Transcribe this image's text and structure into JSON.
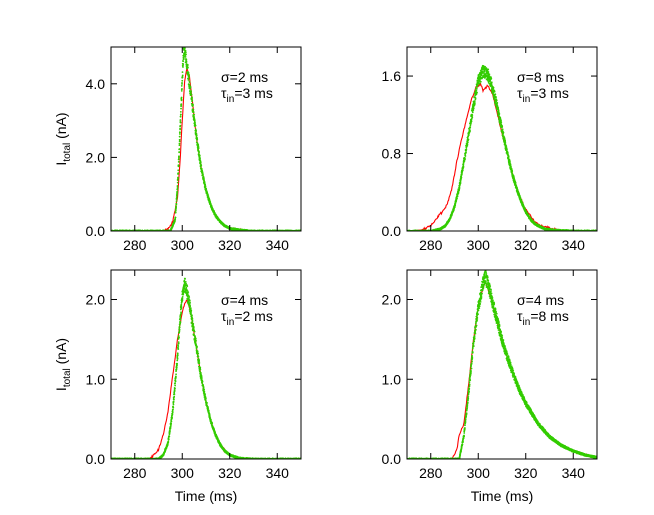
{
  "chart_data": [
    {
      "type": "line",
      "annotation": [
        "σ=2 ms",
        "τ",
        "in",
        "=3 ms"
      ],
      "xlim": [
        270,
        350
      ],
      "ylim": [
        0,
        5.0
      ],
      "xticks": [
        280,
        300,
        320,
        340
      ],
      "yticks": [
        0.0,
        2.0,
        4.0
      ],
      "ytick_labels": [
        "0.0",
        "2.0",
        "4.0"
      ],
      "xticks_labeled": true,
      "ylabel": [
        "I",
        "total",
        " (nA)"
      ],
      "xlabel": "",
      "series": [
        {
          "color": "#ff0000",
          "style": "line",
          "x": [
            270,
            292,
            294,
            296,
            298,
            299,
            300,
            301,
            302,
            303,
            304,
            305,
            306,
            308,
            310,
            312,
            314,
            316,
            318,
            320,
            325,
            330,
            350
          ],
          "y": [
            0,
            0,
            0.05,
            0.25,
            0.9,
            1.8,
            3.0,
            4.05,
            4.45,
            4.2,
            3.7,
            3.1,
            2.55,
            1.7,
            1.1,
            0.7,
            0.42,
            0.25,
            0.14,
            0.07,
            0.02,
            0,
            0
          ]
        },
        {
          "color": "#33cc00",
          "style": "scatter",
          "x": [
            270,
            295,
            297,
            298,
            299,
            300,
            300.5,
            301,
            302,
            303,
            304,
            305,
            306,
            308,
            310,
            312,
            314,
            316,
            318,
            320,
            325,
            330,
            350
          ],
          "y": [
            0,
            0,
            0.3,
            1.2,
            2.6,
            4.1,
            4.8,
            4.9,
            4.5,
            4.0,
            3.55,
            3.05,
            2.55,
            1.7,
            1.1,
            0.7,
            0.42,
            0.25,
            0.14,
            0.07,
            0.02,
            0,
            0
          ]
        }
      ]
    },
    {
      "type": "line",
      "annotation": [
        "σ=8 ms",
        "τ",
        "in",
        "=3 ms"
      ],
      "xlim": [
        270,
        350
      ],
      "ylim": [
        0,
        1.9
      ],
      "xticks": [
        280,
        300,
        320,
        340
      ],
      "yticks": [
        0.0,
        0.8,
        1.6
      ],
      "ytick_labels": [
        "0.0",
        "0.8",
        "1.6"
      ],
      "xticks_labeled": true,
      "ylabel": "",
      "xlabel": "",
      "series": [
        {
          "color": "#ff0000",
          "style": "line",
          "x": [
            270,
            276,
            280,
            283,
            285,
            287,
            289,
            291,
            293,
            295,
            297,
            299,
            301,
            302,
            304,
            306,
            308,
            310,
            312,
            314,
            316,
            318,
            320,
            323,
            326,
            330,
            335,
            340,
            350
          ],
          "y": [
            0,
            0.01,
            0.05,
            0.15,
            0.2,
            0.28,
            0.45,
            0.72,
            0.95,
            1.15,
            1.35,
            1.48,
            1.52,
            1.45,
            1.5,
            1.42,
            1.22,
            1.0,
            0.82,
            0.62,
            0.46,
            0.33,
            0.22,
            0.12,
            0.06,
            0.03,
            0.01,
            0,
            0
          ]
        },
        {
          "color": "#33cc00",
          "style": "scatter",
          "x": [
            270,
            280,
            284,
            286,
            288,
            290,
            292,
            294,
            296,
            298,
            300,
            302,
            304,
            306,
            308,
            310,
            312,
            314,
            316,
            318,
            320,
            322,
            324,
            328,
            332,
            340,
            350
          ],
          "y": [
            0,
            0,
            0.02,
            0.05,
            0.12,
            0.25,
            0.45,
            0.72,
            1.0,
            1.3,
            1.55,
            1.65,
            1.62,
            1.48,
            1.28,
            1.05,
            0.82,
            0.62,
            0.45,
            0.31,
            0.2,
            0.12,
            0.07,
            0.02,
            0.01,
            0,
            0
          ]
        }
      ]
    },
    {
      "type": "line",
      "annotation": [
        "σ=4 ms",
        "τ",
        "in",
        "=2 ms"
      ],
      "xlim": [
        270,
        350
      ],
      "ylim": [
        0,
        2.37
      ],
      "xticks": [
        280,
        300,
        320,
        340
      ],
      "yticks": [
        0.0,
        1.0,
        2.0
      ],
      "ytick_labels": [
        "0.0",
        "1.0",
        "2.0"
      ],
      "xticks_labeled": true,
      "ylabel": [
        "I",
        "total",
        " (nA)"
      ],
      "xlabel": "Time (ms)",
      "series": [
        {
          "color": "#ff0000",
          "style": "line",
          "x": [
            270,
            286,
            288,
            290,
            292,
            294,
            296,
            298,
            300,
            301,
            302,
            303,
            304,
            306,
            308,
            310,
            312,
            314,
            316,
            318,
            320,
            324,
            330,
            350
          ],
          "y": [
            0,
            0,
            0.05,
            0.12,
            0.3,
            0.6,
            1.05,
            1.5,
            1.85,
            1.95,
            2.0,
            1.9,
            1.75,
            1.4,
            1.02,
            0.72,
            0.48,
            0.3,
            0.18,
            0.1,
            0.05,
            0.01,
            0,
            0
          ]
        },
        {
          "color": "#33cc00",
          "style": "scatter",
          "x": [
            270,
            290,
            292,
            294,
            296,
            298,
            299,
            300,
            301,
            302,
            303,
            304,
            306,
            308,
            310,
            312,
            314,
            316,
            318,
            320,
            324,
            330,
            350
          ],
          "y": [
            0,
            0,
            0.05,
            0.2,
            0.6,
            1.3,
            1.7,
            2.05,
            2.2,
            2.1,
            1.95,
            1.75,
            1.4,
            1.02,
            0.72,
            0.48,
            0.3,
            0.18,
            0.1,
            0.05,
            0.01,
            0,
            0
          ]
        }
      ]
    },
    {
      "type": "line",
      "annotation": [
        "σ=4 ms",
        "τ",
        "in",
        "=8 ms"
      ],
      "xlim": [
        270,
        350
      ],
      "ylim": [
        0,
        2.37
      ],
      "xticks": [
        280,
        300,
        320,
        340
      ],
      "yticks": [
        0.0,
        1.0,
        2.0
      ],
      "ytick_labels": [
        "0.0",
        "1.0",
        "2.0"
      ],
      "xticks_labeled": true,
      "ylabel": "",
      "xlabel": "Time (ms)",
      "series": [
        {
          "color": "#ff0000",
          "style": "line",
          "x": [
            270,
            289,
            291,
            292,
            294,
            296,
            298,
            300,
            302,
            303,
            304,
            306,
            308,
            310,
            312,
            315,
            318,
            320,
            325,
            330,
            335,
            340,
            345,
            350
          ],
          "y": [
            0,
            0,
            0.12,
            0.3,
            0.45,
            0.95,
            1.5,
            1.9,
            2.15,
            2.2,
            2.15,
            1.95,
            1.72,
            1.5,
            1.3,
            1.04,
            0.82,
            0.7,
            0.45,
            0.28,
            0.17,
            0.1,
            0.05,
            0.02
          ]
        },
        {
          "color": "#33cc00",
          "style": "scatter",
          "x": [
            270,
            292,
            294,
            296,
            298,
            300,
            302,
            303,
            304,
            306,
            308,
            310,
            312,
            315,
            318,
            320,
            325,
            330,
            335,
            340,
            345,
            350
          ],
          "y": [
            0,
            0,
            0.3,
            0.85,
            1.45,
            1.9,
            2.2,
            2.28,
            2.2,
            1.97,
            1.73,
            1.5,
            1.3,
            1.04,
            0.82,
            0.7,
            0.45,
            0.28,
            0.17,
            0.1,
            0.05,
            0.02
          ]
        }
      ]
    }
  ]
}
